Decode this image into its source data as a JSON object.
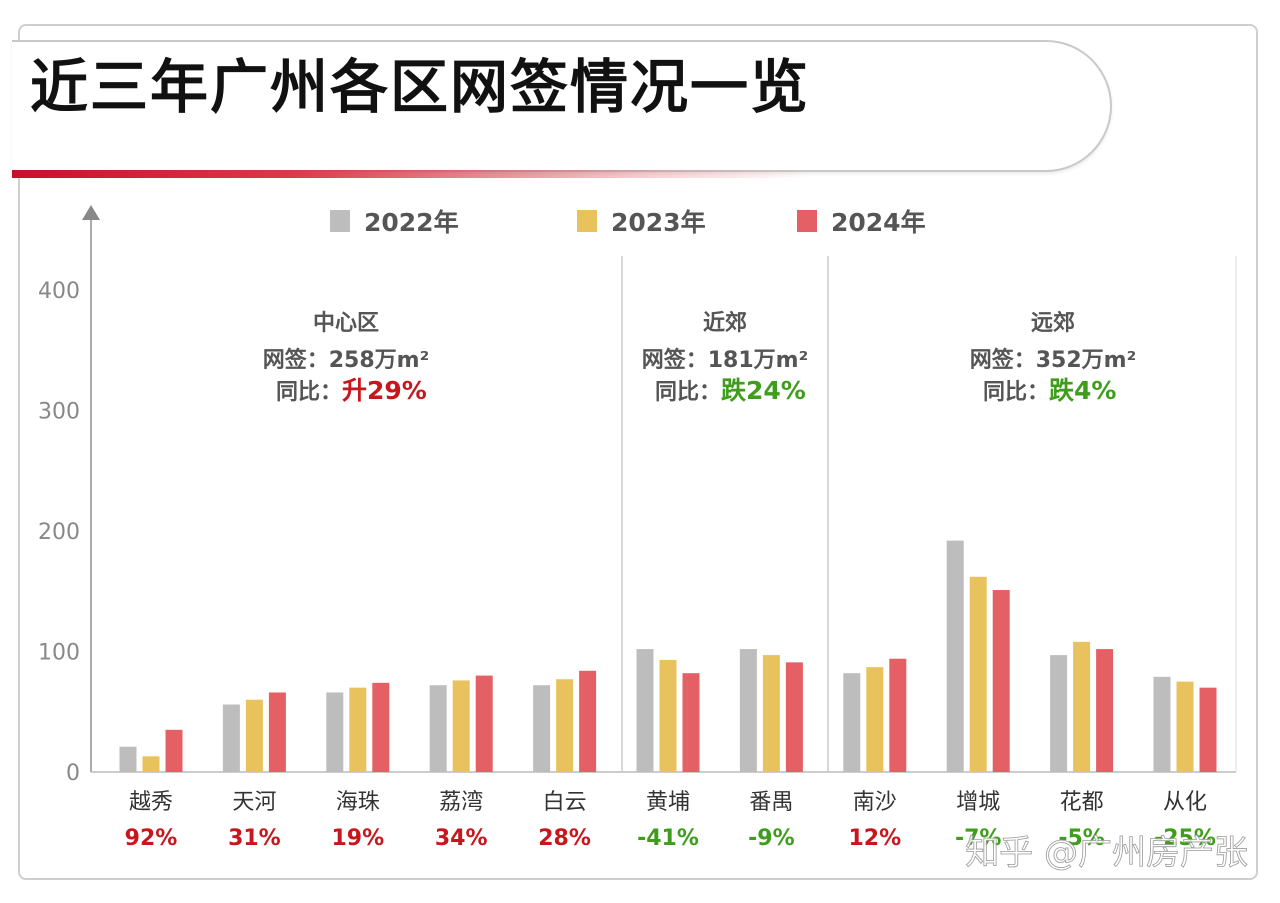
{
  "page": {
    "title": "近三年广州各区网签情况一览",
    "watermark": "知乎 @广州房产张"
  },
  "chart_data": {
    "type": "bar",
    "ylim": [
      0,
      400
    ],
    "yticks": [
      0,
      100,
      200,
      300,
      400
    ],
    "categories": [
      "越秀",
      "天河",
      "海珠",
      "荔湾",
      "白云",
      "黄埔",
      "番禺",
      "南沙",
      "增城",
      "花都",
      "从化"
    ],
    "growth_labels": [
      "92%",
      "31%",
      "19%",
      "34%",
      "28%",
      "-41%",
      "-9%",
      "12%",
      "-7%",
      "-5%",
      "-25%"
    ],
    "series": [
      {
        "name": "2022年",
        "color": "#bdbdbd",
        "values": [
          21,
          56,
          66,
          72,
          72,
          102,
          102,
          82,
          192,
          97,
          79
        ]
      },
      {
        "name": "2023年",
        "color": "#e8c25c",
        "values": [
          13,
          60,
          70,
          76,
          77,
          93,
          97,
          87,
          162,
          108,
          75
        ]
      },
      {
        "name": "2024年",
        "color": "#e46064",
        "values": [
          35,
          66,
          74,
          80,
          84,
          82,
          91,
          94,
          151,
          102,
          70
        ]
      }
    ],
    "colors": {
      "up": "#c8161d",
      "down": "#3e9e1c",
      "text": "#444444",
      "axis": "#999999"
    },
    "groups": [
      {
        "name": "中心区",
        "area_label": "网签：258万m²",
        "change_prefix": "同比：",
        "change": "升29%",
        "direction": "up"
      },
      {
        "name": "近郊",
        "area_label": "网签：181万m²",
        "change_prefix": "同比：",
        "change": "跌24%",
        "direction": "down"
      },
      {
        "name": "远郊",
        "area_label": "网签：352万m²",
        "change_prefix": "同比：",
        "change": "跌4%",
        "direction": "down"
      }
    ]
  }
}
